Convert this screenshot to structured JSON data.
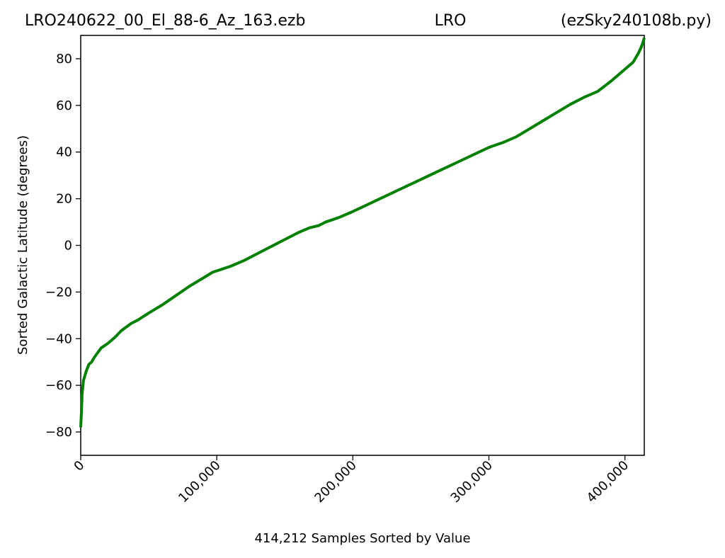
{
  "header": {
    "title_left": "LRO240622_00_El_88-6_Az_163.ezb",
    "title_center": "LRO",
    "title_right": "(ezSky240108b.py)"
  },
  "chart_data": {
    "type": "line",
    "title": "",
    "xlabel": "414,212 Samples Sorted by Value",
    "ylabel": "Sorted Galactic Latitude (degrees)",
    "xlim": [
      0,
      414212
    ],
    "ylim": [
      -90,
      90
    ],
    "x_ticks": [
      0,
      100000,
      200000,
      300000,
      400000
    ],
    "x_tick_labels": [
      "0",
      "100,000",
      "200,000",
      "300,000",
      "400,000"
    ],
    "y_ticks": [
      -80,
      -60,
      -40,
      -20,
      0,
      20,
      40,
      60,
      80
    ],
    "y_tick_labels": [
      "−80",
      "−60",
      "−40",
      "−20",
      "0",
      "20",
      "40",
      "60",
      "80"
    ],
    "grid": false,
    "series": [
      {
        "color": "#008000",
        "x": [
          0,
          500,
          1000,
          2000,
          4000,
          6000,
          8000,
          10000,
          15000,
          20000,
          25000,
          30000,
          37000,
          42000,
          50000,
          60000,
          70000,
          80000,
          90000,
          97000,
          110000,
          120000,
          130000,
          140000,
          150000,
          160000,
          168000,
          175000,
          180000,
          190000,
          200000,
          220000,
          240000,
          260000,
          280000,
          300000,
          310000,
          320000,
          330000,
          340000,
          350000,
          360000,
          370000,
          380000,
          390000,
          400000,
          406000,
          410000,
          412000,
          413500,
          414212
        ],
        "y": [
          -78,
          -72,
          -64,
          -58,
          -54,
          -51,
          -50,
          -48,
          -44,
          -42,
          -39.5,
          -36.5,
          -33.5,
          -32,
          -29,
          -25.5,
          -21.5,
          -17.5,
          -14,
          -11.5,
          -9,
          -6.5,
          -3.5,
          -0.5,
          2.5,
          5.5,
          7.5,
          8.5,
          10,
          12,
          14.5,
          20,
          25.5,
          31,
          36.5,
          42,
          44,
          46.5,
          50,
          53.5,
          57,
          60.5,
          63.5,
          66,
          70.5,
          75.5,
          78.5,
          82.5,
          85,
          87.5,
          89
        ]
      }
    ]
  }
}
